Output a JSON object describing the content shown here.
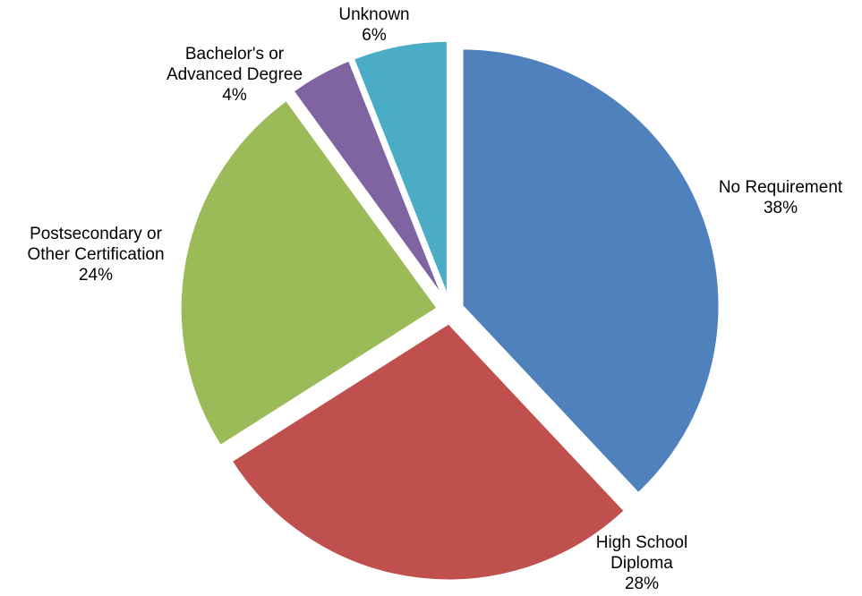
{
  "chart_data": {
    "type": "pie",
    "title": "",
    "legend": "none",
    "unit": "%",
    "slices": [
      {
        "label_lines": [
          "No Requirement"
        ],
        "value": 38,
        "value_label": "38%",
        "color": "#4F81BD"
      },
      {
        "label_lines": [
          "High School",
          "Diploma"
        ],
        "value": 28,
        "value_label": "28%",
        "color": "#C0504D"
      },
      {
        "label_lines": [
          "Postsecondary or",
          "Other Certification"
        ],
        "value": 24,
        "value_label": "24%",
        "color": "#9BBB59"
      },
      {
        "label_lines": [
          "Bachelor's or",
          "Advanced Degree"
        ],
        "value": 4,
        "value_label": "4%",
        "color": "#8064A2"
      },
      {
        "label_lines": [
          "Unknown"
        ],
        "value": 6,
        "value_label": "6%",
        "color": "#4BACC6"
      }
    ]
  }
}
